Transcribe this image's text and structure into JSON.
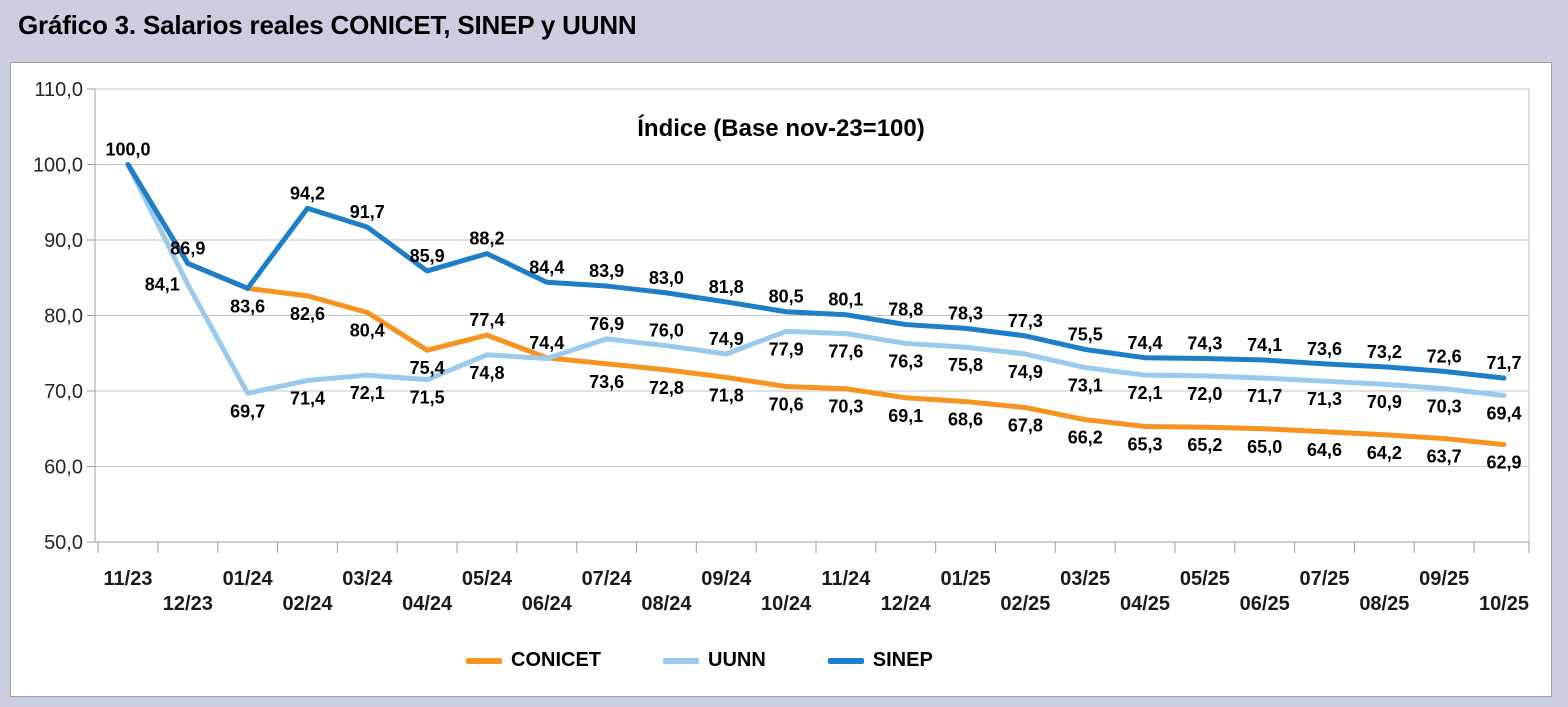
{
  "title": "Gráfico 3. Salarios reales CONICET, SINEP y UUNN",
  "chart_data": {
    "type": "line",
    "title": "Índice (Base nov-23=100)",
    "categories": [
      "11/23",
      "12/23",
      "01/24",
      "02/24",
      "03/24",
      "04/24",
      "05/24",
      "06/24",
      "07/24",
      "08/24",
      "09/24",
      "10/24",
      "11/24",
      "12/24",
      "01/25",
      "02/25",
      "03/25",
      "04/25",
      "05/25",
      "06/25",
      "07/25",
      "08/25",
      "09/25",
      "10/25"
    ],
    "y_axis": {
      "min": 50,
      "max": 110,
      "step": 10,
      "ticks": [
        {
          "value": 110,
          "label": "110,0"
        },
        {
          "value": 100,
          "label": "100,0"
        },
        {
          "value": 90,
          "label": "90,0"
        },
        {
          "value": 80,
          "label": "80,0"
        },
        {
          "value": 70,
          "label": "70,0"
        },
        {
          "value": 60,
          "label": "60,0"
        },
        {
          "value": 50,
          "label": "50,0"
        }
      ]
    },
    "grid": "horizontal",
    "legend_position": "bottom",
    "series": [
      {
        "name": "CONICET",
        "color": "#F79420",
        "values": [
          100,
          86.9,
          83.6,
          82.6,
          80.4,
          75.4,
          77.4,
          74.4,
          73.6,
          72.8,
          71.8,
          70.6,
          70.3,
          69.1,
          68.6,
          67.8,
          66.2,
          65.3,
          65.2,
          65,
          64.6,
          64.2,
          63.7,
          62.9
        ],
        "labels": [
          null,
          null,
          "83,6",
          "82,6",
          "80,4",
          "75,4",
          "77,4",
          "74,4",
          "73,6",
          "72,8",
          "71,8",
          "70,6",
          "70,3",
          "69,1",
          "68,6",
          "67,8",
          "66,2",
          "65,3",
          "65,2",
          "65,0",
          "64,6",
          "64,2",
          "63,7",
          "62,9"
        ],
        "label_pos": [
          null,
          null,
          "below",
          "below",
          "below",
          "below",
          "above",
          "above",
          "below",
          "below",
          "below",
          "below",
          "below",
          "below",
          "below",
          "below",
          "below",
          "below",
          "below",
          "below",
          "below",
          "below",
          "below",
          "below"
        ]
      },
      {
        "name": "UUNN",
        "color": "#9BCAED",
        "values": [
          100,
          84.1,
          69.7,
          71.4,
          72.1,
          71.5,
          74.8,
          74.3,
          76.9,
          76,
          74.9,
          77.9,
          77.6,
          76.3,
          75.8,
          74.9,
          73.1,
          72.1,
          72,
          71.7,
          71.3,
          70.9,
          70.3,
          69.4
        ],
        "labels": [
          null,
          "84,1",
          "69,7",
          "71,4",
          "72,1",
          "71,5",
          "74,8",
          null,
          "76,9",
          "76,0",
          "74,9",
          "77,9",
          "77,6",
          "76,3",
          "75,8",
          "74,9",
          "73,1",
          "72,1",
          "72,0",
          "71,7",
          "71,3",
          "70,9",
          "70,3",
          "69,4"
        ],
        "label_pos": [
          null,
          "left",
          "below",
          "below",
          "below",
          "below",
          "below",
          null,
          "above",
          "above",
          "above",
          "below",
          "below",
          "below",
          "below",
          "below",
          "below",
          "below",
          "below",
          "below",
          "below",
          "below",
          "below",
          "below"
        ]
      },
      {
        "name": "SINEP",
        "color": "#1F7EC8",
        "values": [
          100,
          86.9,
          83.6,
          94.2,
          91.7,
          85.9,
          88.2,
          84.4,
          83.9,
          83,
          81.8,
          80.5,
          80.1,
          78.8,
          78.3,
          77.3,
          75.5,
          74.4,
          74.3,
          74.1,
          73.6,
          73.2,
          72.6,
          71.7
        ],
        "labels": [
          "100,0",
          "86,9",
          null,
          "94,2",
          "91,7",
          "85,9",
          "88,2",
          "84,4",
          "83,9",
          "83,0",
          "81,8",
          "80,5",
          "80,1",
          "78,8",
          "78,3",
          "77,3",
          "75,5",
          "74,4",
          "74,3",
          "74,1",
          "73,6",
          "73,2",
          "72,6",
          "71,7"
        ],
        "label_pos": [
          "above",
          "above",
          null,
          "above",
          "above",
          "above",
          "above",
          "above",
          "above",
          "above",
          "above",
          "above",
          "above",
          "above",
          "above",
          "above",
          "above",
          "above",
          "above",
          "above",
          "above",
          "above",
          "above",
          "above"
        ]
      }
    ]
  },
  "colors": {
    "background": "#CACEDF",
    "panel": "#FFFFFF",
    "gridline": "#C6C6C6",
    "axis": "#9F9F9F"
  }
}
